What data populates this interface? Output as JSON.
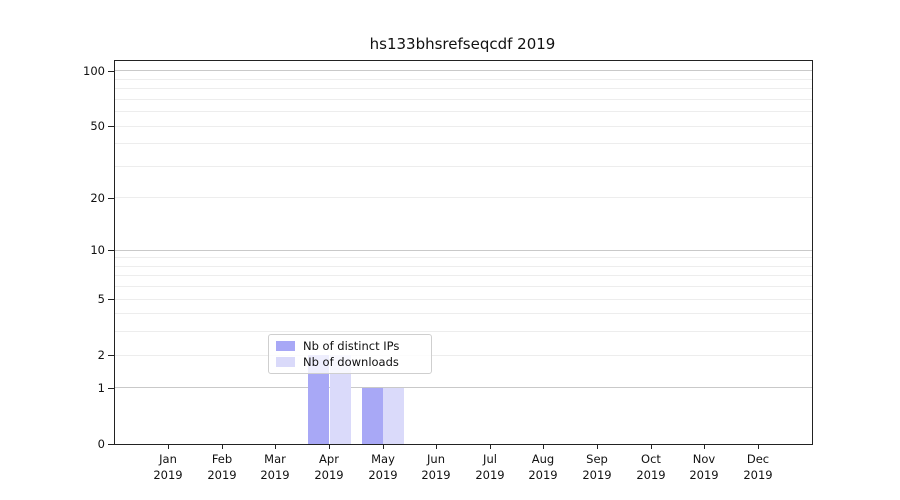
{
  "title": "hs133bhsrefseqcdf 2019",
  "chart_data": {
    "type": "bar",
    "title": "hs133bhsrefseqcdf 2019",
    "categories": [
      "Jan 2019",
      "Feb 2019",
      "Mar 2019",
      "Apr 2019",
      "May 2019",
      "Jun 2019",
      "Jul 2019",
      "Aug 2019",
      "Sep 2019",
      "Oct 2019",
      "Nov 2019",
      "Dec 2019"
    ],
    "series": [
      {
        "name": "Nb of distinct IPs",
        "color": "#a8a8f6",
        "values": [
          0,
          0,
          0,
          2,
          1,
          0,
          0,
          0,
          0,
          0,
          0,
          0
        ]
      },
      {
        "name": "Nb of downloads",
        "color": "#dadafa",
        "values": [
          0,
          0,
          0,
          2,
          1,
          0,
          0,
          0,
          0,
          0,
          0,
          0
        ]
      }
    ],
    "xlabel": "",
    "ylabel": "",
    "yscale": "log1p",
    "ylim": [
      0,
      113.3
    ],
    "ytick_values": [
      0,
      1,
      2,
      5,
      10,
      20,
      50,
      100
    ],
    "ytick_labels": [
      "0",
      "1",
      "2",
      "5",
      "10",
      "20",
      "50",
      "100"
    ],
    "grid": "on",
    "grid_major_values": [
      1,
      10,
      100
    ],
    "grid_minor_values": [
      2,
      3,
      4,
      5,
      6,
      7,
      8,
      9,
      20,
      30,
      40,
      50,
      60,
      70,
      80,
      90
    ],
    "legend_position": "lower center-right inside plot"
  },
  "colors": {
    "bar_distinct_ips": "#a8a8f6",
    "bar_downloads": "#dadafa",
    "grid_major": "#c9c9c9",
    "grid_minor": "#ededed",
    "spine": "#222222",
    "legend_border": "#cfcfcf",
    "text": "#111111"
  }
}
